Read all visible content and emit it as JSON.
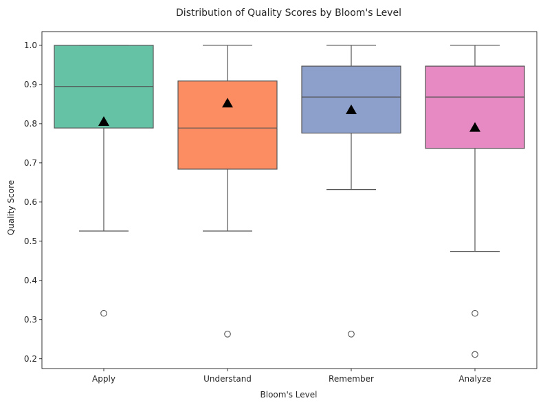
{
  "chart_data": {
    "type": "box",
    "title": "Distribution of Quality Scores by Bloom's Level",
    "xlabel": "Bloom's Level",
    "ylabel": "Quality Score",
    "ylim": [
      0.175,
      1.035
    ],
    "yticks": [
      0.2,
      0.3,
      0.4,
      0.5,
      0.6,
      0.7,
      0.8,
      0.9,
      1.0
    ],
    "ytick_labels": [
      "0.2",
      "0.3",
      "0.4",
      "0.5",
      "0.6",
      "0.7",
      "0.8",
      "0.9",
      "1.0"
    ],
    "grid": false,
    "categories": [
      "Apply",
      "Understand",
      "Remember",
      "Analyze"
    ],
    "colors": [
      "#66c2a5",
      "#fc8d62",
      "#8da0cb",
      "#e78ac3"
    ],
    "mean_marker": "triangle",
    "boxes": [
      {
        "category": "Apply",
        "whisker_low": 0.526,
        "q1": 0.789,
        "median": 0.895,
        "q3": 1.0,
        "whisker_high": 1.0,
        "mean": 0.805,
        "outliers": [
          0.316
        ]
      },
      {
        "category": "Understand",
        "whisker_low": 0.526,
        "q1": 0.684,
        "median": 0.789,
        "q3": 0.909,
        "whisker_high": 1.0,
        "mean": 0.852,
        "outliers": [
          0.263
        ]
      },
      {
        "category": "Remember",
        "whisker_low": 0.632,
        "q1": 0.776,
        "median": 0.868,
        "q3": 0.947,
        "whisker_high": 1.0,
        "mean": 0.835,
        "outliers": [
          0.263
        ]
      },
      {
        "category": "Analyze",
        "whisker_low": 0.474,
        "q1": 0.737,
        "median": 0.868,
        "q3": 0.947,
        "whisker_high": 1.0,
        "mean": 0.79,
        "outliers": [
          0.316,
          0.211
        ]
      }
    ]
  }
}
